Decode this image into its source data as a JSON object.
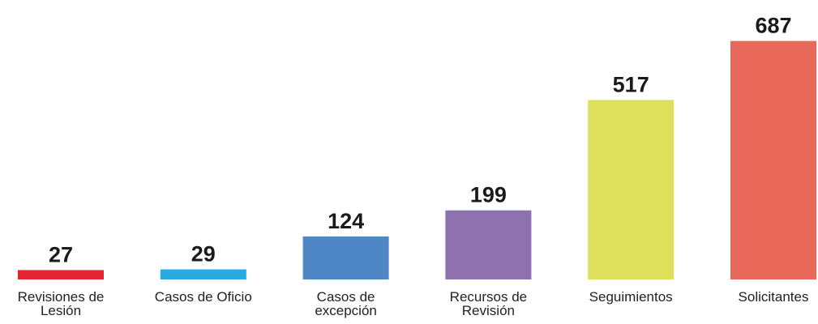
{
  "chart_data": {
    "type": "bar",
    "categories": [
      "Revisiones de Lesión",
      "Casos de Oficio",
      "Casos de excepción",
      "Recursos de Revisión",
      "Seguimientos",
      "Solicitantes"
    ],
    "values": [
      27,
      29,
      124,
      199,
      517,
      687
    ],
    "colors": [
      "#e3262f",
      "#29abe2",
      "#4f86c6",
      "#8e72b0",
      "#dce05a",
      "#e8695a"
    ],
    "ylim": [
      0,
      700
    ]
  }
}
